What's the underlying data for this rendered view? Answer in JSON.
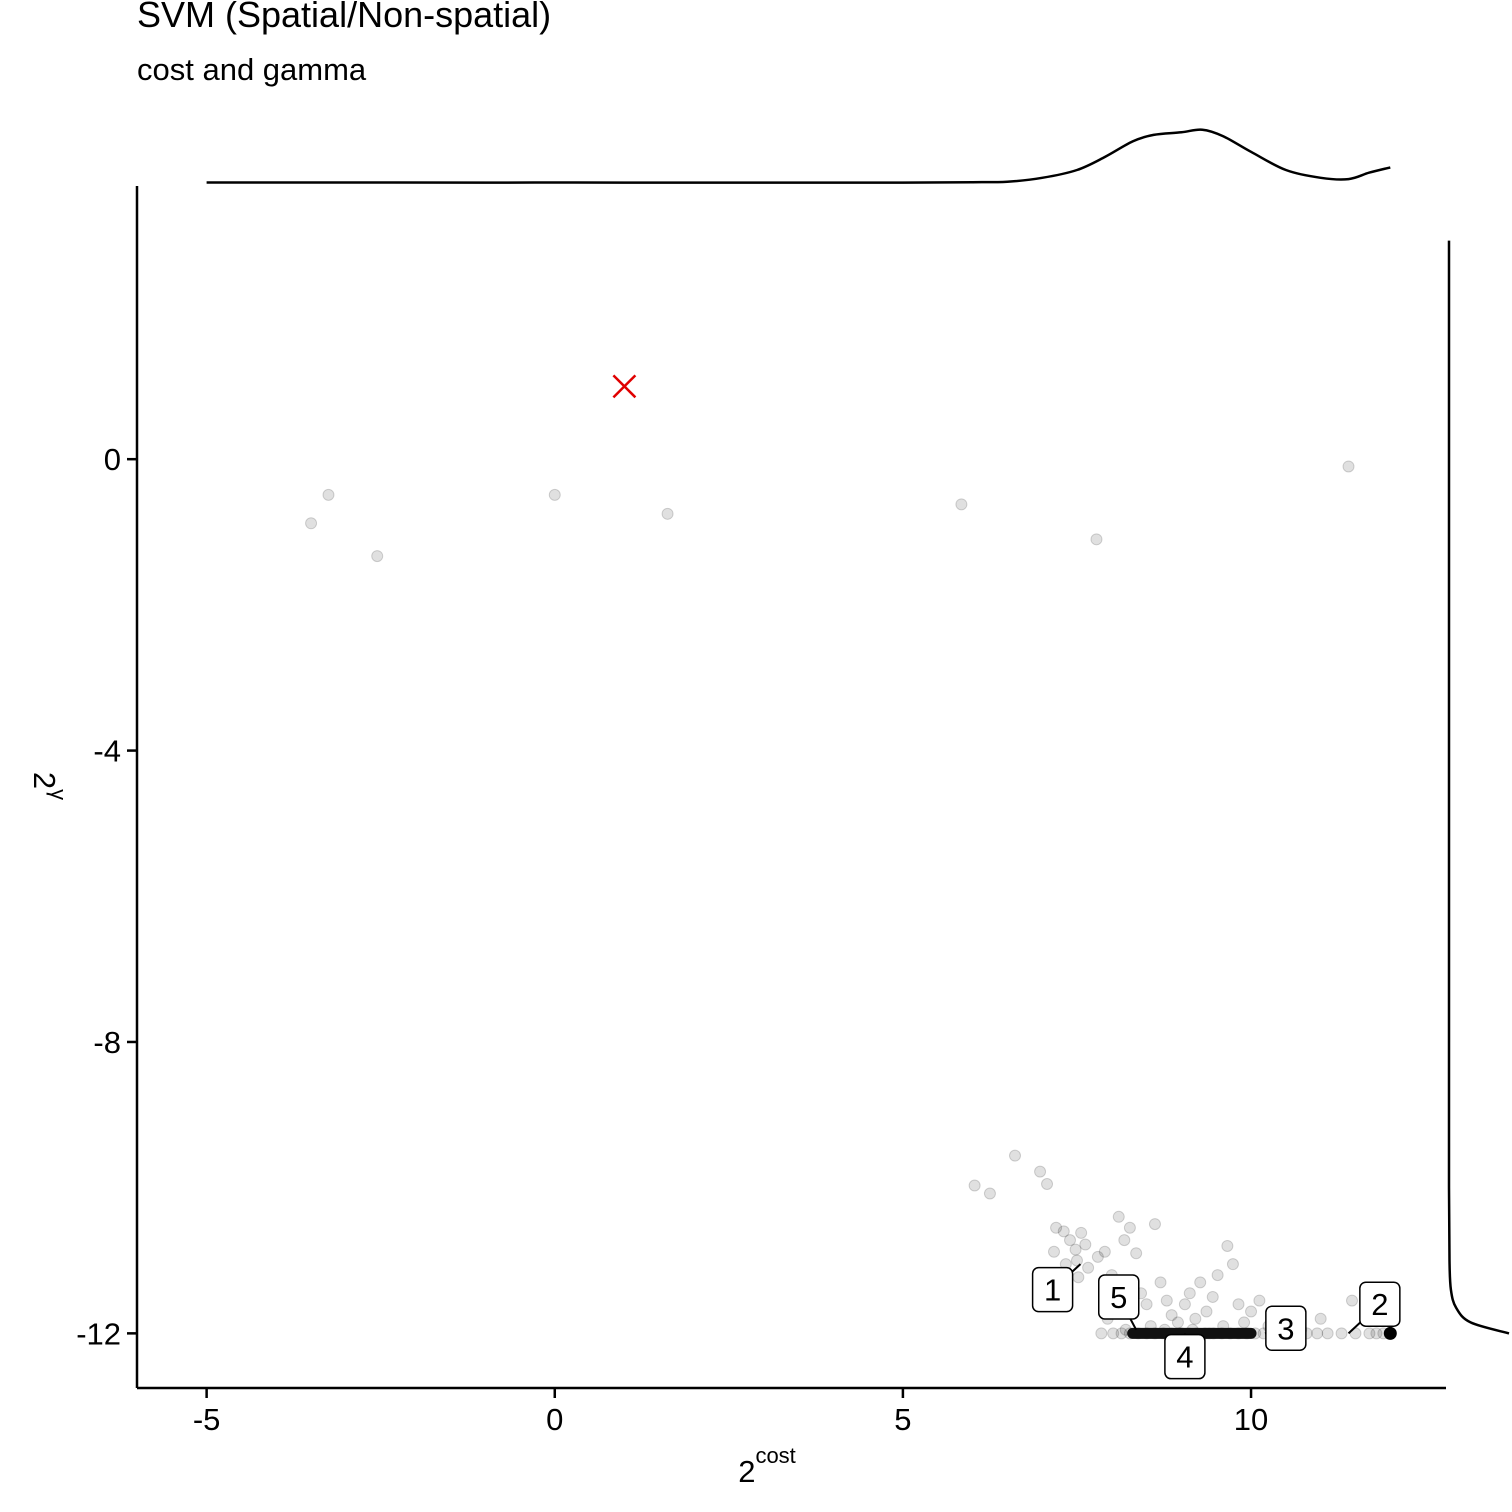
{
  "chart_data": {
    "type": "scatter",
    "title": "SVM (Spatial/Non-spatial)",
    "subtitle": "cost and gamma",
    "xlabel_base": "2",
    "xlabel_sup": "cost",
    "ylabel_base": "2",
    "ylabel_sup": "γ",
    "xlim": [
      -6,
      12.8
    ],
    "ylim": [
      -12.75,
      3.75
    ],
    "x_ticks": [
      {
        "value": -5,
        "label": "-5"
      },
      {
        "value": 0,
        "label": "0"
      },
      {
        "value": 5,
        "label": "5"
      },
      {
        "value": 10,
        "label": "10"
      }
    ],
    "y_ticks": [
      {
        "value": 0,
        "label": "0"
      },
      {
        "value": -4,
        "label": "-4"
      },
      {
        "value": -8,
        "label": "-8"
      },
      {
        "value": -12,
        "label": "-12"
      }
    ],
    "grid": false,
    "points": [
      {
        "x": -3.5,
        "y": -0.88
      },
      {
        "x": -3.25,
        "y": -0.49
      },
      {
        "x": -2.55,
        "y": -1.33
      },
      {
        "x": 0.0,
        "y": -0.49
      },
      {
        "x": 1.62,
        "y": -0.75
      },
      {
        "x": 5.84,
        "y": -0.62
      },
      {
        "x": 7.78,
        "y": -1.1
      },
      {
        "x": 11.4,
        "y": -0.1
      },
      {
        "x": 6.61,
        "y": -9.56
      },
      {
        "x": 6.03,
        "y": -9.97
      },
      {
        "x": 6.25,
        "y": -10.08
      },
      {
        "x": 6.97,
        "y": -9.78
      },
      {
        "x": 7.07,
        "y": -9.95
      },
      {
        "x": 7.2,
        "y": -10.55
      },
      {
        "x": 7.31,
        "y": -10.6
      },
      {
        "x": 7.4,
        "y": -10.72
      },
      {
        "x": 7.48,
        "y": -10.85
      },
      {
        "x": 7.5,
        "y": -11.0
      },
      {
        "x": 7.56,
        "y": -10.62
      },
      {
        "x": 7.62,
        "y": -10.78
      },
      {
        "x": 7.17,
        "y": -10.88
      },
      {
        "x": 7.34,
        "y": -11.05
      },
      {
        "x": 7.52,
        "y": -11.23
      },
      {
        "x": 7.66,
        "y": -11.1
      },
      {
        "x": 7.8,
        "y": -10.95
      },
      {
        "x": 7.9,
        "y": -10.88
      },
      {
        "x": 8.0,
        "y": -11.2
      },
      {
        "x": 8.1,
        "y": -10.4
      },
      {
        "x": 8.18,
        "y": -10.72
      },
      {
        "x": 8.26,
        "y": -10.55
      },
      {
        "x": 8.35,
        "y": -10.9
      },
      {
        "x": 8.42,
        "y": -11.45
      },
      {
        "x": 8.5,
        "y": -11.6
      },
      {
        "x": 8.62,
        "y": -10.5
      },
      {
        "x": 8.7,
        "y": -11.3
      },
      {
        "x": 8.79,
        "y": -11.55
      },
      {
        "x": 8.86,
        "y": -11.75
      },
      {
        "x": 8.95,
        "y": -11.85
      },
      {
        "x": 9.05,
        "y": -11.6
      },
      {
        "x": 9.12,
        "y": -11.45
      },
      {
        "x": 9.2,
        "y": -11.8
      },
      {
        "x": 9.27,
        "y": -11.3
      },
      {
        "x": 9.36,
        "y": -11.7
      },
      {
        "x": 9.45,
        "y": -11.5
      },
      {
        "x": 9.52,
        "y": -11.2
      },
      {
        "x": 9.6,
        "y": -11.9
      },
      {
        "x": 9.66,
        "y": -10.8
      },
      {
        "x": 9.74,
        "y": -11.05
      },
      {
        "x": 9.82,
        "y": -11.6
      },
      {
        "x": 9.9,
        "y": -11.85
      },
      {
        "x": 10.0,
        "y": -11.7
      },
      {
        "x": 10.12,
        "y": -11.55
      },
      {
        "x": 10.25,
        "y": -11.9
      },
      {
        "x": 10.5,
        "y": -11.85
      },
      {
        "x": 10.72,
        "y": -11.95
      },
      {
        "x": 11.0,
        "y": -11.8
      },
      {
        "x": 11.45,
        "y": -11.55
      },
      {
        "x": 11.65,
        "y": -11.5
      },
      {
        "x": 8.2,
        "y": -11.95
      },
      {
        "x": 8.56,
        "y": -11.9
      },
      {
        "x": 8.76,
        "y": -11.95
      },
      {
        "x": 9.0,
        "y": -12.0
      },
      {
        "x": 9.16,
        "y": -11.95
      },
      {
        "x": 9.4,
        "y": -12.0
      },
      {
        "x": 7.94,
        "y": -11.8
      },
      {
        "x": 8.06,
        "y": -11.62
      },
      {
        "x": 8.3,
        "y": -11.4
      },
      {
        "x": 7.85,
        "y": -12.0
      },
      {
        "x": 8.02,
        "y": -12.0
      },
      {
        "x": 8.14,
        "y": -12.0
      },
      {
        "x": 8.26,
        "y": -12.0
      },
      {
        "x": 8.38,
        "y": -12.0
      },
      {
        "x": 8.5,
        "y": -12.0
      },
      {
        "x": 8.62,
        "y": -12.0
      },
      {
        "x": 8.74,
        "y": -12.0
      },
      {
        "x": 8.86,
        "y": -12.0
      },
      {
        "x": 8.98,
        "y": -12.0
      },
      {
        "x": 9.1,
        "y": -12.0
      },
      {
        "x": 9.22,
        "y": -12.0
      },
      {
        "x": 9.34,
        "y": -12.0
      },
      {
        "x": 9.46,
        "y": -12.0
      },
      {
        "x": 9.58,
        "y": -12.0
      },
      {
        "x": 9.7,
        "y": -12.0
      },
      {
        "x": 9.82,
        "y": -12.0
      },
      {
        "x": 9.94,
        "y": -12.0
      },
      {
        "x": 10.06,
        "y": -12.0
      },
      {
        "x": 10.18,
        "y": -12.0
      },
      {
        "x": 10.3,
        "y": -12.0
      },
      {
        "x": 10.42,
        "y": -12.0
      },
      {
        "x": 10.54,
        "y": -12.0
      },
      {
        "x": 10.66,
        "y": -12.0
      },
      {
        "x": 10.8,
        "y": -12.0
      },
      {
        "x": 10.95,
        "y": -12.0
      },
      {
        "x": 11.1,
        "y": -12.0
      },
      {
        "x": 11.3,
        "y": -12.0
      },
      {
        "x": 11.5,
        "y": -12.0
      },
      {
        "x": 11.7,
        "y": -12.0
      },
      {
        "x": 11.8,
        "y": -12.0
      },
      {
        "x": 11.9,
        "y": -12.0
      }
    ],
    "highlight_points": [
      {
        "x": 12.0,
        "y": -12.0
      }
    ],
    "dense_band": {
      "x_start": 8.3,
      "x_end": 10.0,
      "y": -12.0
    },
    "best_marker": {
      "x": 1.0,
      "y": 1.0,
      "shape": "x",
      "color": "#e00000"
    },
    "labels": [
      {
        "text": "1",
        "x": 7.15,
        "y": -11.4,
        "anchor_x": 7.55,
        "anchor_y": -11.05
      },
      {
        "text": "5",
        "x": 8.1,
        "y": -11.5,
        "anchor_x": 8.35,
        "anchor_y": -11.95
      },
      {
        "text": "4",
        "x": 9.05,
        "y": -12.32,
        "anchor_x": 9.05,
        "anchor_y": -12.0
      },
      {
        "text": "3",
        "x": 10.5,
        "y": -11.93,
        "anchor_x": 10.2,
        "anchor_y": -12.0
      },
      {
        "text": "2",
        "x": 11.85,
        "y": -11.6,
        "anchor_x": 11.4,
        "anchor_y": -12.0
      }
    ],
    "density_x": [
      {
        "x": -5.0,
        "d": 0.02
      },
      {
        "x": -3.0,
        "d": 0.02
      },
      {
        "x": -1.0,
        "d": 0.015
      },
      {
        "x": 0.0,
        "d": 0.02
      },
      {
        "x": 1.0,
        "d": 0.015
      },
      {
        "x": 3.0,
        "d": 0.015
      },
      {
        "x": 5.0,
        "d": 0.015
      },
      {
        "x": 6.0,
        "d": 0.03
      },
      {
        "x": 6.5,
        "d": 0.05
      },
      {
        "x": 7.0,
        "d": 0.2
      },
      {
        "x": 7.5,
        "d": 0.5
      },
      {
        "x": 7.9,
        "d": 1.0
      },
      {
        "x": 8.3,
        "d": 1.6
      },
      {
        "x": 8.6,
        "d": 1.85
      },
      {
        "x": 9.0,
        "d": 1.95
      },
      {
        "x": 9.3,
        "d": 2.05
      },
      {
        "x": 9.6,
        "d": 1.8
      },
      {
        "x": 10.0,
        "d": 1.2
      },
      {
        "x": 10.5,
        "d": 0.5
      },
      {
        "x": 11.0,
        "d": 0.2
      },
      {
        "x": 11.4,
        "d": 0.15
      },
      {
        "x": 11.7,
        "d": 0.4
      },
      {
        "x": 12.0,
        "d": 0.6
      }
    ],
    "density_y": [
      {
        "y": 3.0,
        "d": 0.0
      },
      {
        "y": 1.0,
        "d": 0.0
      },
      {
        "y": -1.0,
        "d": 0.0
      },
      {
        "y": -4.0,
        "d": 0.0
      },
      {
        "y": -8.0,
        "d": 0.0
      },
      {
        "y": -10.0,
        "d": 0.0
      },
      {
        "y": -11.0,
        "d": 0.02
      },
      {
        "y": -11.4,
        "d": 0.08
      },
      {
        "y": -11.65,
        "d": 0.3
      },
      {
        "y": -11.85,
        "d": 0.9
      },
      {
        "y": -12.0,
        "d": 2.5
      }
    ]
  }
}
